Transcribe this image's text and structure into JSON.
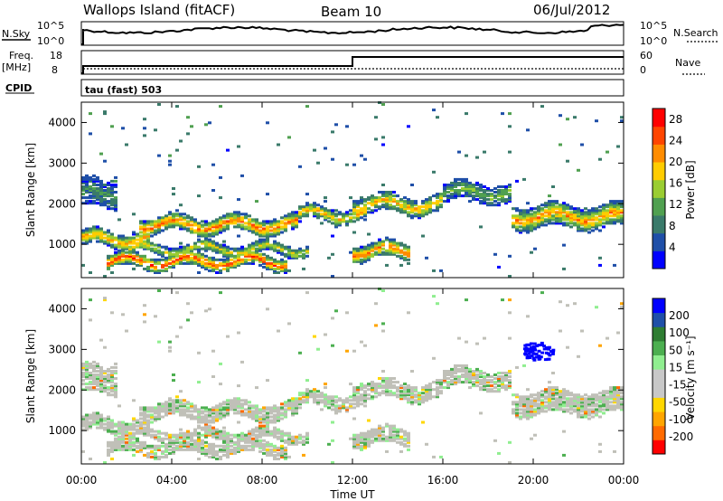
{
  "header": {
    "station": "Wallops Island (fitACF)",
    "beam": "Beam 10",
    "date": "06/Jul/2012"
  },
  "top_panels": {
    "nsky_label": "N.Sky",
    "nsearch_label": "N.Search",
    "noise_ticks": [
      "10^5",
      "10^0"
    ],
    "freq_label": "Freq.",
    "freq_unit": "[MHz]",
    "freq_ticks": [
      "18",
      "8"
    ],
    "nave_label": "Nave",
    "nave_ticks": [
      "60",
      "0"
    ],
    "cpid_label": "CPID",
    "cpid_value": "tau (fast) 503"
  },
  "colors": {
    "power": [
      "#0000ff",
      "#1f4fa8",
      "#3a7a6a",
      "#50a050",
      "#9acd32",
      "#ffcc00",
      "#ff8c00",
      "#ff4500",
      "#ff0000"
    ],
    "velocity": [
      "#ff0000",
      "#ff6a00",
      "#ffa500",
      "#ffd700",
      "#c8c8c8",
      "#c8c8c8",
      "#90ee90",
      "#4caf50",
      "#2e7d32",
      "#1f4fa8",
      "#0000ff"
    ],
    "ground_scatter": "#c0c0b8"
  },
  "chart_data": [
    {
      "type": "heatmap",
      "title": "Power",
      "ylabel": "Slant Range [km]",
      "xlabel": "",
      "x_tick_labels": [
        "00:00",
        "04:00",
        "08:00",
        "12:00",
        "16:00",
        "20:00",
        "00:00"
      ],
      "y_tick_labels": [
        "1000",
        "2000",
        "3000",
        "4000"
      ],
      "xlim_hours": [
        0,
        24
      ],
      "ylim_km": [
        180,
        4500
      ],
      "colorbar_label": "Power [dB]",
      "colorbar_ticks": [
        "4",
        "8",
        "12",
        "16",
        "20",
        "24",
        "28"
      ],
      "colorbar_range": [
        0,
        30
      ],
      "echo_bands": [
        {
          "t_start": 0.0,
          "t_end": 3.0,
          "range_center": 1100,
          "half_width": 120,
          "peak_db": 22
        },
        {
          "t_start": 2.5,
          "t_end": 9.5,
          "range_center": 1450,
          "half_width": 130,
          "peak_db": 24
        },
        {
          "t_start": 1.0,
          "t_end": 9.0,
          "range_center": 550,
          "half_width": 110,
          "peak_db": 26
        },
        {
          "t_start": 2.0,
          "t_end": 10.0,
          "range_center": 850,
          "half_width": 90,
          "peak_db": 18
        },
        {
          "t_start": 9.5,
          "t_end": 12.5,
          "range_center": 1700,
          "half_width": 110,
          "peak_db": 20
        },
        {
          "t_start": 12.0,
          "t_end": 14.5,
          "range_center": 800,
          "half_width": 130,
          "peak_db": 24
        },
        {
          "t_start": 12.0,
          "t_end": 16.0,
          "range_center": 1950,
          "half_width": 140,
          "peak_db": 20
        },
        {
          "t_start": 16.0,
          "t_end": 19.0,
          "range_center": 2250,
          "half_width": 150,
          "peak_db": 14
        },
        {
          "t_start": 19.0,
          "t_end": 24.0,
          "range_center": 1650,
          "half_width": 180,
          "peak_db": 22
        },
        {
          "t_start": 0.0,
          "t_end": 1.5,
          "range_center": 2200,
          "half_width": 220,
          "peak_db": 10
        }
      ]
    },
    {
      "type": "heatmap",
      "title": "Velocity",
      "ylabel": "Slant Range [km]",
      "xlabel": "Time UT",
      "x_tick_labels": [
        "00:00",
        "04:00",
        "08:00",
        "12:00",
        "16:00",
        "20:00",
        "00:00"
      ],
      "y_tick_labels": [
        "1000",
        "2000",
        "3000",
        "4000"
      ],
      "xlim_hours": [
        0,
        24
      ],
      "ylim_km": [
        180,
        4500
      ],
      "colorbar_label": "Velocity [m s⁻¹]",
      "colorbar_ticks": [
        "200",
        "100",
        "50",
        "15",
        "-15",
        "-50",
        "-100",
        "-200"
      ],
      "colorbar_range": [
        -250,
        250
      ],
      "blue_patch": {
        "t_center": 20.2,
        "range_center": 2900,
        "velocity": 220
      }
    }
  ]
}
